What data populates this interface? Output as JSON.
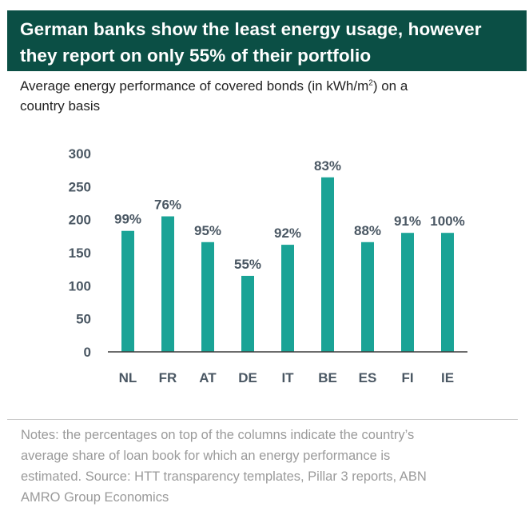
{
  "title": {
    "line1": "German banks show the least energy usage, however",
    "line2": "they report on only 55% of their portfolio"
  },
  "subtitle": {
    "main": "Average energy performance of covered bonds (in kWh/m",
    "sup": "2",
    "after": ") on a",
    "line2": "country basis"
  },
  "notes": {
    "line1": "Notes: the percentages on top of the columns indicate the country’s",
    "line2": "average share of loan book for which an energy performance is",
    "line3": "estimated. Source: HTT transparency templates, Pillar 3 reports, ABN",
    "line4": "AMRO Group Economics"
  },
  "colors": {
    "bar": "#1aa396",
    "title_band": "#0b4f45",
    "axis": "#3c3c3c",
    "tick_text": "#4a5763"
  },
  "chart_data": {
    "type": "bar",
    "title": "Average energy performance of covered bonds (in kWh/m2) on a country basis",
    "xlabel": "",
    "ylabel": "",
    "ylim": [
      0,
      300
    ],
    "yticks": [
      0,
      50,
      100,
      150,
      200,
      250,
      300
    ],
    "grid": false,
    "categories": [
      "NL",
      "FR",
      "AT",
      "DE",
      "IT",
      "BE",
      "ES",
      "FI",
      "IE"
    ],
    "values": [
      183,
      205,
      166,
      115,
      162,
      264,
      166,
      180,
      180
    ],
    "data_labels": [
      "99%",
      "76%",
      "95%",
      "55%",
      "92%",
      "83%",
      "88%",
      "91%",
      "100%"
    ]
  }
}
